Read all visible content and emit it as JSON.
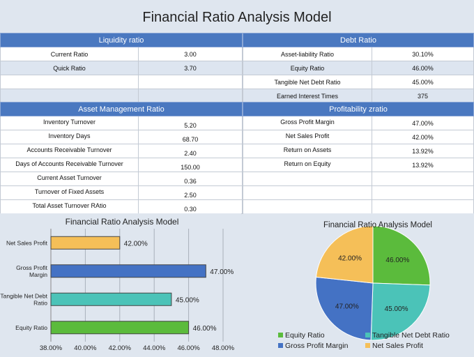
{
  "title": "Financial Ratio Analysis Model",
  "sections": {
    "liquidity": {
      "header": "Liquidity ratio",
      "rows": [
        {
          "label": "Current Ratio",
          "value": "3.00"
        },
        {
          "label": "Quick Ratio",
          "value": "3.70"
        },
        {
          "label": "",
          "value": ""
        },
        {
          "label": "",
          "value": ""
        }
      ]
    },
    "debt": {
      "header": "Debt Ratio",
      "rows": [
        {
          "label": "Asset-liability Ratio",
          "value": "30.10%"
        },
        {
          "label": "Equity Ratio",
          "value": "46.00%"
        },
        {
          "label": "Tangible Net Debt Ratio",
          "value": "45.00%"
        },
        {
          "label": "Earned Interest Times",
          "value": "375"
        }
      ]
    },
    "asset": {
      "header": "Asset Management Ratio",
      "rows": [
        {
          "label": "Inventory Turnover",
          "value": "5.20"
        },
        {
          "label": "Inventory Days",
          "value": "68.70"
        },
        {
          "label": "Accounts Receivable Turnover",
          "value": "2.40"
        },
        {
          "label": "Days of Accounts Receivable Turnover",
          "value": "150.00"
        },
        {
          "label": "Current Asset Turnover",
          "value": "0.36"
        },
        {
          "label": "Turnover of Fixed Assets",
          "value": "2.50"
        },
        {
          "label": "Total Asset Turnover RAtio",
          "value": "0.30"
        }
      ]
    },
    "profit": {
      "header": "Profitability zratio",
      "rows": [
        {
          "label": "Gross Profit Margin",
          "value": "47.00%"
        },
        {
          "label": "Net Sales Profit",
          "value": "42.00%"
        },
        {
          "label": "Return on Assets",
          "value": "13.92%"
        },
        {
          "label": "Return on Equity",
          "value": "13.92%"
        },
        {
          "label": "",
          "value": ""
        },
        {
          "label": "",
          "value": ""
        },
        {
          "label": "",
          "value": ""
        }
      ]
    }
  },
  "chart_data": [
    {
      "type": "bar",
      "orientation": "horizontal",
      "title": "Financial Ratio Analysis Model",
      "categories": [
        "Net Sales Profit",
        "Gross Profit Margin",
        "Tangible Net Debt Ratio",
        "Equity Ratio"
      ],
      "values": [
        42,
        47,
        45,
        46
      ],
      "data_labels": [
        "42.00%",
        "47.00%",
        "45.00%",
        "46.00%"
      ],
      "colors": [
        "#f5bf58",
        "#4472c4",
        "#4bc3b8",
        "#5bbb3c"
      ],
      "xlim": [
        38,
        48
      ],
      "xticks": [
        "38.00%",
        "40.00%",
        "42.00%",
        "44.00%",
        "46.00%",
        "48.00%"
      ],
      "grid": true
    },
    {
      "type": "pie",
      "title": "Financial Ratio Analysis Model",
      "categories": [
        "Equity Ratio",
        "Tangible Net Debt Ratio",
        "Gross Profit Margin",
        "Net Sales Profit"
      ],
      "values": [
        46,
        45,
        47,
        42
      ],
      "data_labels": [
        "46.00%",
        "45.00%",
        "47.00%",
        "42.00%"
      ],
      "colors": [
        "#5bbb3c",
        "#4bc3b8",
        "#4472c4",
        "#f5bf58"
      ],
      "legend": "bottom"
    }
  ]
}
